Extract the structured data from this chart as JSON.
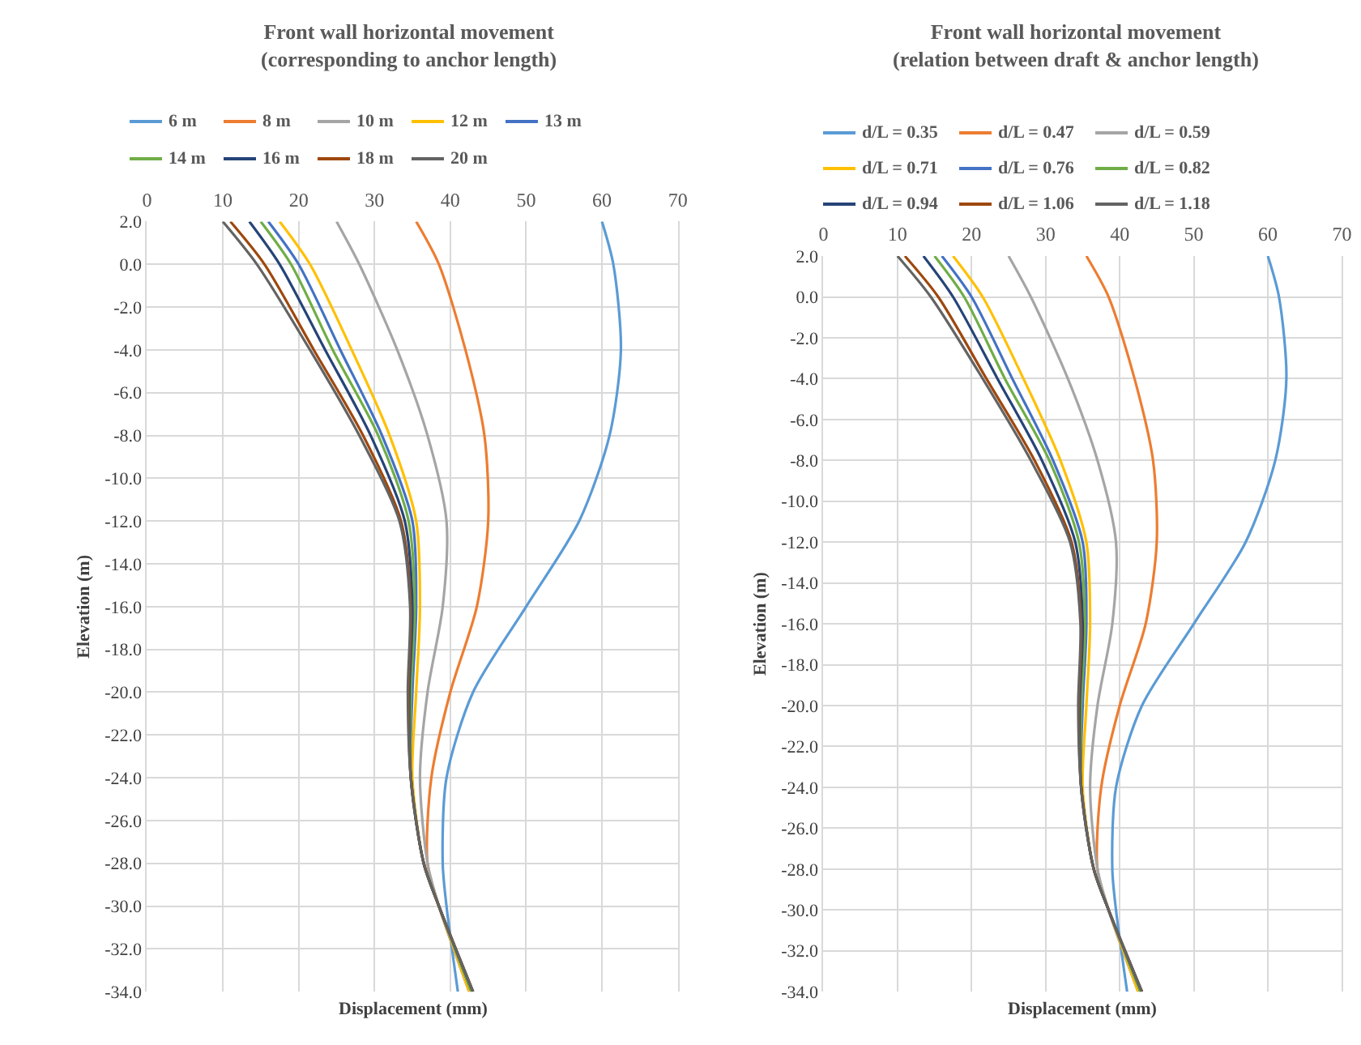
{
  "chart_data": [
    {
      "type": "line",
      "title": "Front wall horizontal movement\n(corresponding to anchor length)",
      "xlabel": "Displacement (mm)",
      "ylabel": "Elevation (m)",
      "xlim": [
        0,
        70
      ],
      "xticks": [
        0,
        10,
        20,
        30,
        40,
        50,
        60,
        70
      ],
      "ylim": [
        -34,
        2
      ],
      "yticks": [
        {
          "value": 2,
          "label": "2.0"
        },
        {
          "value": 0,
          "label": "0.0"
        },
        {
          "value": -2,
          "label": "-2.0"
        },
        {
          "value": -4,
          "label": "-4.0"
        },
        {
          "value": -6,
          "label": "-6.0"
        },
        {
          "value": -8,
          "label": "-8.0"
        },
        {
          "value": -10,
          "label": "-10.0"
        },
        {
          "value": -12,
          "label": "-12.0"
        },
        {
          "value": -14,
          "label": "-14.0"
        },
        {
          "value": -16,
          "label": "-16.0"
        },
        {
          "value": -18,
          "label": "-18.0"
        },
        {
          "value": -20,
          "label": "-20.0"
        },
        {
          "value": -22,
          "label": "-22.0"
        },
        {
          "value": -24,
          "label": "-24.0"
        },
        {
          "value": -26,
          "label": "-26.0"
        },
        {
          "value": -28,
          "label": "-28.0"
        },
        {
          "value": -30,
          "label": "-30.0"
        },
        {
          "value": -32,
          "label": "-32.0"
        },
        {
          "value": -34,
          "label": "-34.0"
        }
      ],
      "grid": true,
      "legend": "top",
      "marker": "none",
      "line_style": "solid",
      "series": [
        {
          "name": "6 m",
          "color": "#5b9bd5",
          "x": [
            60,
            61.5,
            62.5,
            61,
            57,
            50,
            43,
            39.5,
            39,
            39.5,
            41
          ],
          "values": [
            2,
            0,
            -4,
            -8,
            -12,
            -16,
            -20,
            -24,
            -28,
            -30,
            -34
          ]
        },
        {
          "name": "8 m",
          "color": "#ed7d31",
          "x": [
            35.5,
            38.5,
            42,
            44.5,
            45,
            43.5,
            40,
            37.5,
            37,
            38.5,
            42.5
          ],
          "values": [
            2,
            0,
            -4,
            -8,
            -12,
            -16,
            -20,
            -24,
            -28,
            -30,
            -34
          ]
        },
        {
          "name": "10 m",
          "color": "#a5a5a5",
          "x": [
            25,
            28,
            33,
            37,
            39.5,
            39,
            37,
            36,
            37,
            38.5,
            42.5
          ],
          "values": [
            2,
            0,
            -4,
            -8,
            -12,
            -16,
            -20,
            -24,
            -28,
            -30,
            -34
          ]
        },
        {
          "name": "12 m",
          "color": "#ffc000",
          "x": [
            17.5,
            21.5,
            27,
            32,
            35.5,
            36,
            35.5,
            35,
            36.5,
            38.5,
            42.5
          ],
          "values": [
            2,
            0,
            -4,
            -8,
            -12,
            -16,
            -20,
            -24,
            -28,
            -30,
            -34
          ]
        },
        {
          "name": "13 m",
          "color": "#4472c4",
          "x": [
            16,
            20,
            25.5,
            31,
            35,
            35.5,
            35,
            34.8,
            36.5,
            38.5,
            42.8
          ],
          "values": [
            2,
            0,
            -4,
            -8,
            -12,
            -16,
            -20,
            -24,
            -28,
            -30,
            -34
          ]
        },
        {
          "name": "14 m",
          "color": "#70ad47",
          "x": [
            15,
            19,
            24.5,
            30.5,
            34.5,
            35.3,
            34.8,
            34.8,
            36.5,
            38.5,
            42.8
          ],
          "values": [
            2,
            0,
            -4,
            -8,
            -12,
            -16,
            -20,
            -24,
            -28,
            -30,
            -34
          ]
        },
        {
          "name": "16 m",
          "color": "#264478",
          "x": [
            13.5,
            17.5,
            23.5,
            29.5,
            34,
            35,
            34.6,
            34.8,
            36.5,
            38.5,
            43
          ],
          "values": [
            2,
            0,
            -4,
            -8,
            -12,
            -16,
            -20,
            -24,
            -28,
            -30,
            -34
          ]
        },
        {
          "name": "18 m",
          "color": "#9e480e",
          "x": [
            11,
            15.5,
            22,
            28.5,
            33.5,
            34.8,
            34.5,
            34.8,
            36.5,
            38.5,
            43
          ],
          "values": [
            2,
            0,
            -4,
            -8,
            -12,
            -16,
            -20,
            -24,
            -28,
            -30,
            -34
          ]
        },
        {
          "name": "20 m",
          "color": "#636363",
          "x": [
            10,
            14.5,
            21.5,
            28,
            33.3,
            34.7,
            34.4,
            34.8,
            36.5,
            38.5,
            43
          ],
          "values": [
            2,
            0,
            -4,
            -8,
            -12,
            -16,
            -20,
            -24,
            -28,
            -30,
            -34
          ]
        }
      ]
    },
    {
      "type": "line",
      "title": "Front wall horizontal movement\n(relation between draft & anchor length)",
      "xlabel": "Displacement (mm)",
      "ylabel": "Elevation (m)",
      "xlim": [
        0,
        70
      ],
      "xticks": [
        0,
        10,
        20,
        30,
        40,
        50,
        60,
        70
      ],
      "ylim": [
        -34,
        2
      ],
      "yticks": [
        {
          "value": 2,
          "label": "2.0"
        },
        {
          "value": 0,
          "label": "0.0"
        },
        {
          "value": -2,
          "label": "-2.0"
        },
        {
          "value": -4,
          "label": "-4.0"
        },
        {
          "value": -6,
          "label": "-6.0"
        },
        {
          "value": -8,
          "label": "-8.0"
        },
        {
          "value": -10,
          "label": "-10.0"
        },
        {
          "value": -12,
          "label": "-12.0"
        },
        {
          "value": -14,
          "label": "-14.0"
        },
        {
          "value": -16,
          "label": "-16.0"
        },
        {
          "value": -18,
          "label": "-18.0"
        },
        {
          "value": -20,
          "label": "-20.0"
        },
        {
          "value": -22,
          "label": "-22.0"
        },
        {
          "value": -24,
          "label": "-24.0"
        },
        {
          "value": -26,
          "label": "-26.0"
        },
        {
          "value": -28,
          "label": "-28.0"
        },
        {
          "value": -30,
          "label": "-30.0"
        },
        {
          "value": -32,
          "label": "-32.0"
        },
        {
          "value": -34,
          "label": "-34.0"
        }
      ],
      "grid": true,
      "legend": "top",
      "marker": "none",
      "line_style": "solid",
      "series": [
        {
          "name": "d/L = 0.35",
          "color": "#5b9bd5",
          "x": [
            60,
            61.5,
            62.5,
            61,
            57,
            50,
            43,
            39.5,
            39,
            39.5,
            41
          ],
          "values": [
            2,
            0,
            -4,
            -8,
            -12,
            -16,
            -20,
            -24,
            -28,
            -30,
            -34
          ]
        },
        {
          "name": "d/L = 0.47",
          "color": "#ed7d31",
          "x": [
            35.5,
            38.5,
            42,
            44.5,
            45,
            43.5,
            40,
            37.5,
            37,
            38.5,
            42.5
          ],
          "values": [
            2,
            0,
            -4,
            -8,
            -12,
            -16,
            -20,
            -24,
            -28,
            -30,
            -34
          ]
        },
        {
          "name": "d/L = 0.59",
          "color": "#a5a5a5",
          "x": [
            25,
            28,
            33,
            37,
            39.5,
            39,
            37,
            36,
            37,
            38.5,
            42.5
          ],
          "values": [
            2,
            0,
            -4,
            -8,
            -12,
            -16,
            -20,
            -24,
            -28,
            -30,
            -34
          ]
        },
        {
          "name": "d/L = 0.71",
          "color": "#ffc000",
          "x": [
            17.5,
            21.5,
            27,
            32,
            35.5,
            36,
            35.5,
            35,
            36.5,
            38.5,
            42.5
          ],
          "values": [
            2,
            0,
            -4,
            -8,
            -12,
            -16,
            -20,
            -24,
            -28,
            -30,
            -34
          ]
        },
        {
          "name": "d/L = 0.76",
          "color": "#4472c4",
          "x": [
            16,
            20,
            25.5,
            31,
            35,
            35.5,
            35,
            34.8,
            36.5,
            38.5,
            42.8
          ],
          "values": [
            2,
            0,
            -4,
            -8,
            -12,
            -16,
            -20,
            -24,
            -28,
            -30,
            -34
          ]
        },
        {
          "name": "d/L = 0.82",
          "color": "#70ad47",
          "x": [
            15,
            19,
            24.5,
            30.5,
            34.5,
            35.3,
            34.8,
            34.8,
            36.5,
            38.5,
            42.8
          ],
          "values": [
            2,
            0,
            -4,
            -8,
            -12,
            -16,
            -20,
            -24,
            -28,
            -30,
            -34
          ]
        },
        {
          "name": "d/L = 0.94",
          "color": "#264478",
          "x": [
            13.5,
            17.5,
            23.5,
            29.5,
            34,
            35,
            34.6,
            34.8,
            36.5,
            38.5,
            43
          ],
          "values": [
            2,
            0,
            -4,
            -8,
            -12,
            -16,
            -20,
            -24,
            -28,
            -30,
            -34
          ]
        },
        {
          "name": "d/L = 1.06",
          "color": "#9e480e",
          "x": [
            11,
            15.5,
            22,
            28.5,
            33.5,
            34.8,
            34.5,
            34.8,
            36.5,
            38.5,
            43
          ],
          "values": [
            2,
            0,
            -4,
            -8,
            -12,
            -16,
            -20,
            -24,
            -28,
            -30,
            -34
          ]
        },
        {
          "name": "d/L = 1.18",
          "color": "#636363",
          "x": [
            10,
            14.5,
            21.5,
            28,
            33.3,
            34.7,
            34.4,
            34.8,
            36.5,
            38.5,
            43
          ],
          "values": [
            2,
            0,
            -4,
            -8,
            -12,
            -16,
            -20,
            -24,
            -28,
            -30,
            -34
          ]
        }
      ]
    }
  ]
}
